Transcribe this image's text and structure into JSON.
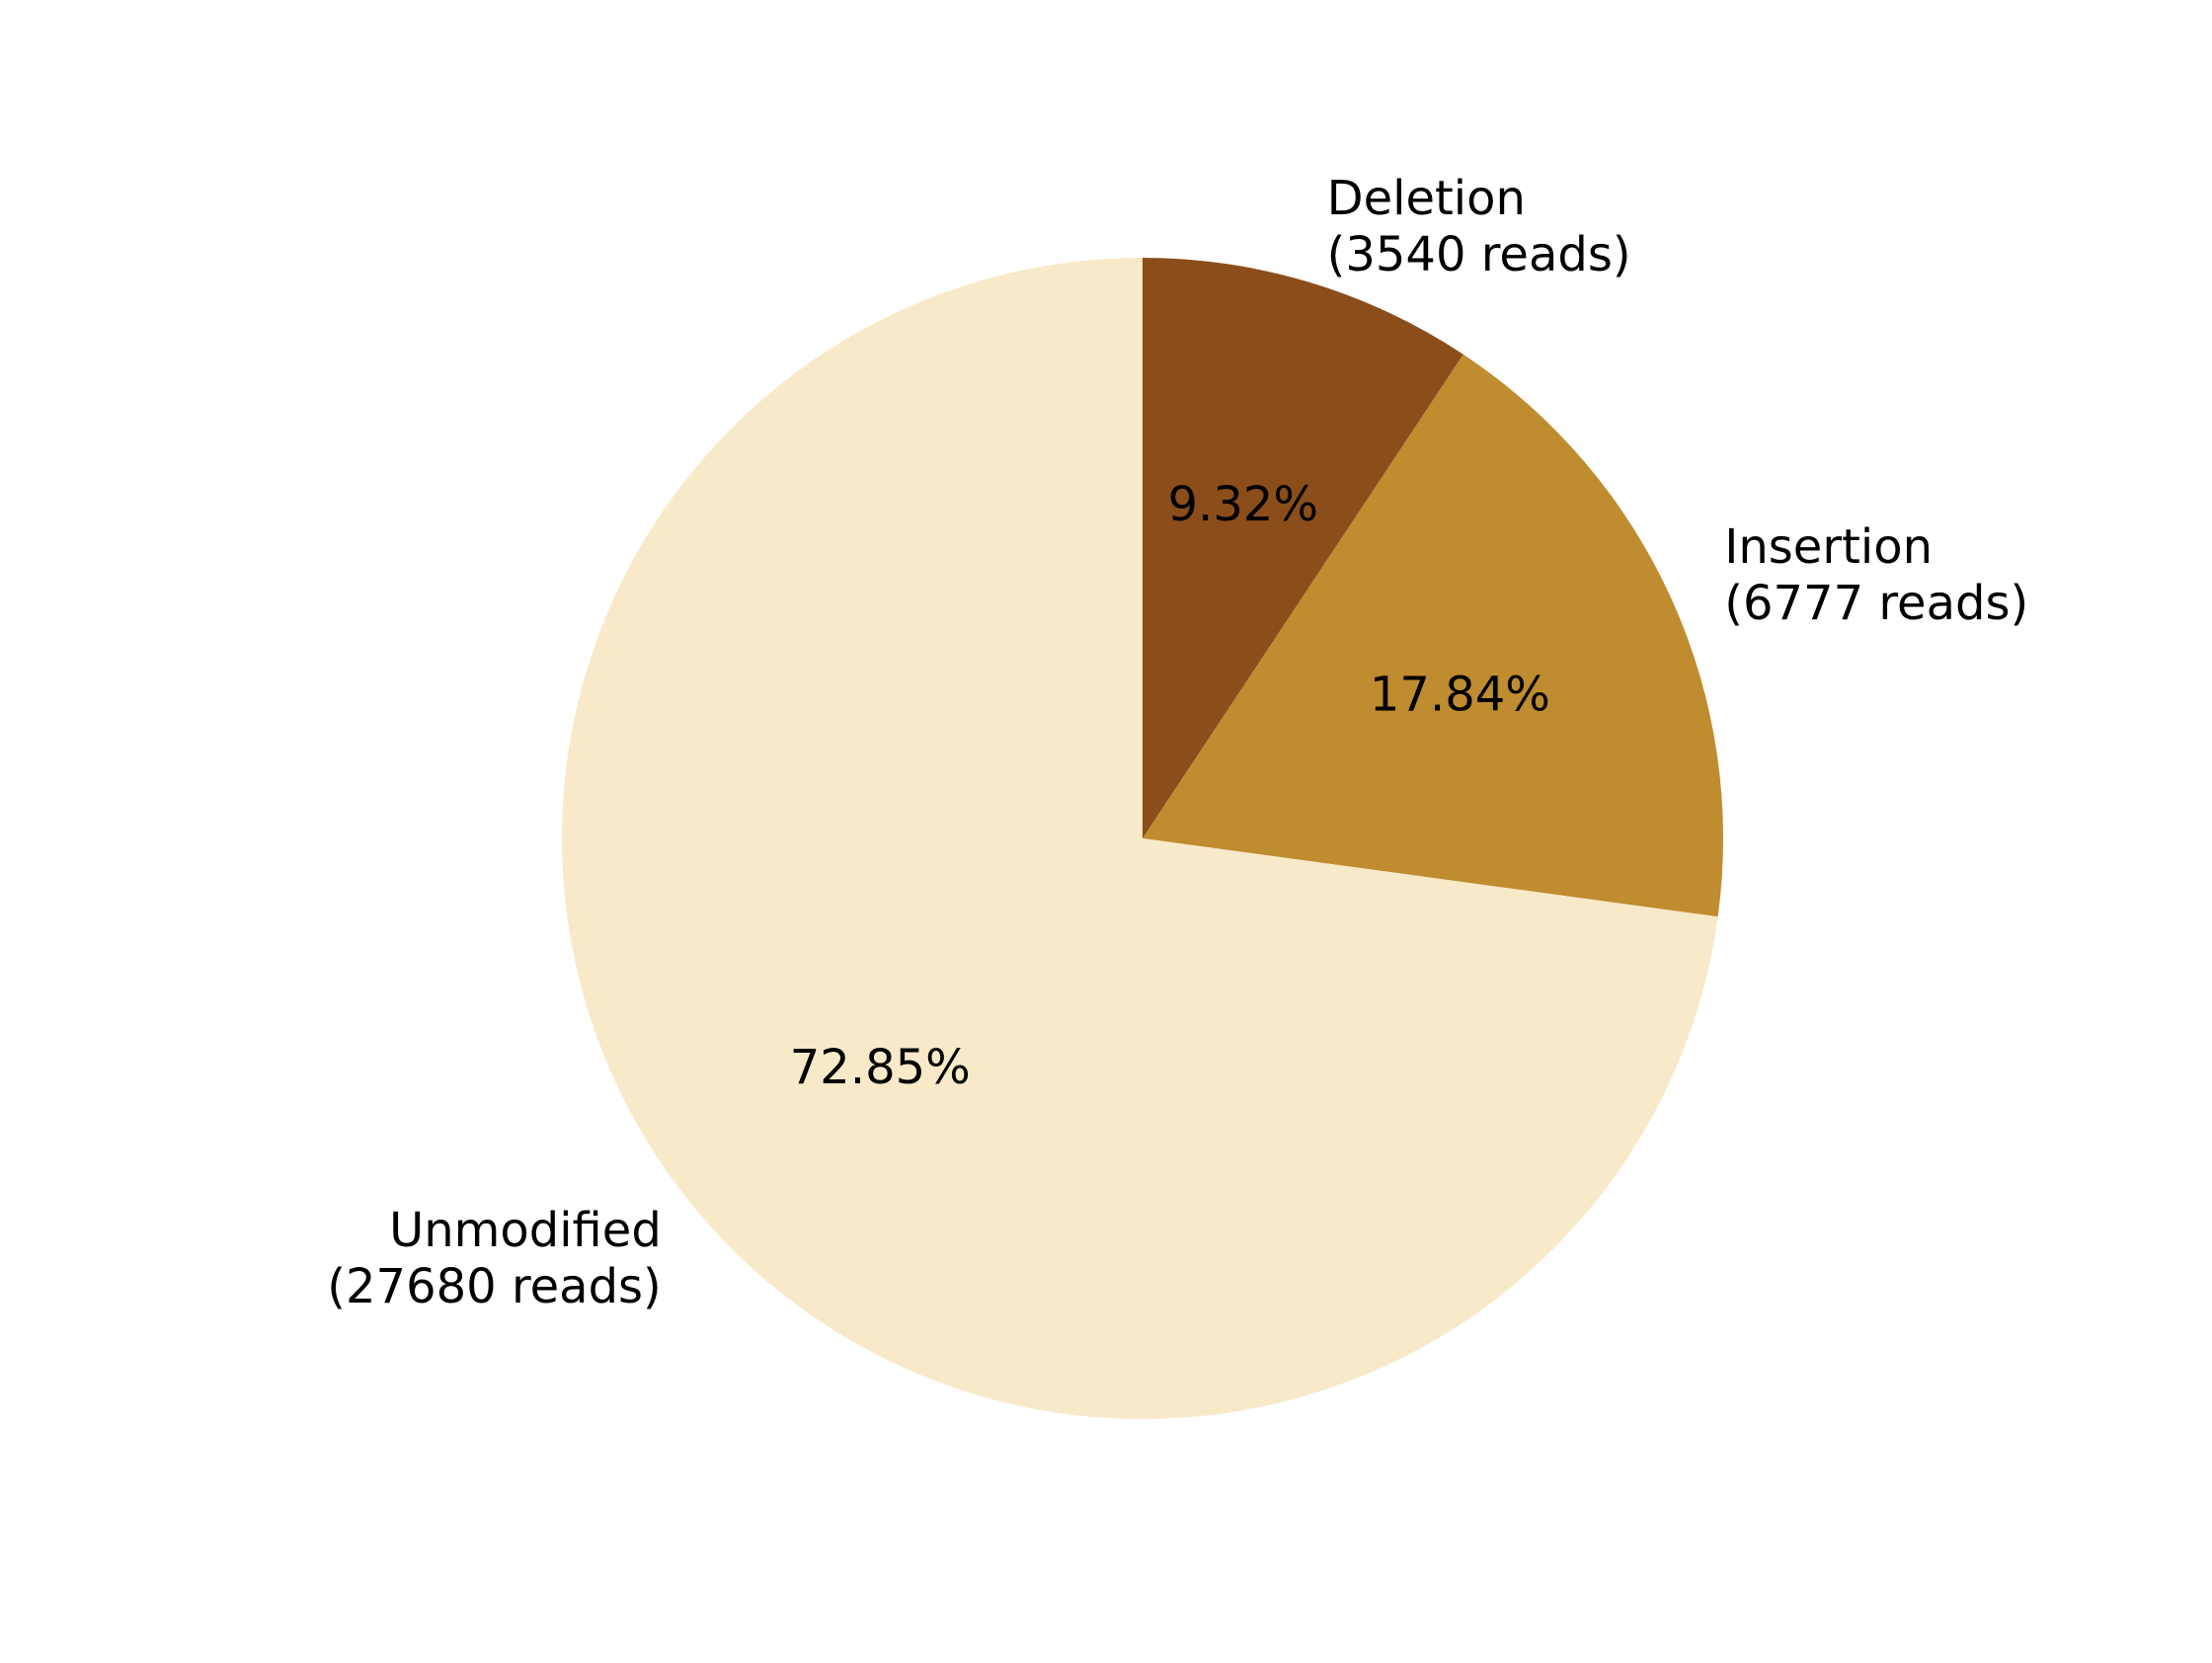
{
  "chart_data": {
    "type": "pie",
    "title": "",
    "slices": [
      {
        "name": "Deletion",
        "detail": "(3540 reads)",
        "reads": 3540,
        "percent_label": "9.32%",
        "color": "#8B4E1A"
      },
      {
        "name": "Insertion",
        "detail": "(6777 reads)",
        "reads": 6777,
        "percent_label": "17.84%",
        "color": "#C08C30"
      },
      {
        "name": "Unmodified",
        "detail": "(27680 reads)",
        "reads": 27680,
        "percent_label": "72.85%",
        "color": "#F8E9C9"
      }
    ],
    "start_angle": "12 o'clock",
    "direction": "clockwise",
    "legend": "none"
  }
}
